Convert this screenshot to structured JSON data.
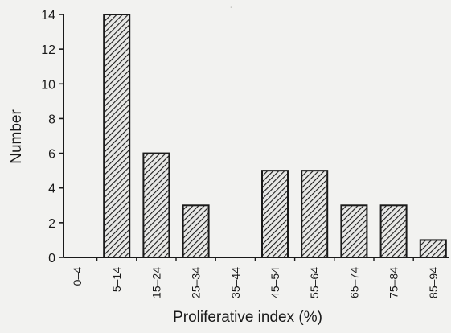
{
  "chart_data": {
    "type": "bar",
    "title": "",
    "xlabel": "Proliferative index (%)",
    "ylabel": "Number",
    "categories": [
      "0–4",
      "5–14",
      "15–24",
      "25–34",
      "35–44",
      "45–54",
      "55–64",
      "65–74",
      "75–84",
      "85–94"
    ],
    "values": [
      0,
      14,
      6,
      3,
      0,
      5,
      5,
      3,
      3,
      1
    ],
    "ylim": [
      0,
      14
    ],
    "yticks": [
      0,
      2,
      4,
      6,
      8,
      10,
      12,
      14
    ],
    "grid": false,
    "legend": "none",
    "bar_fill": "diagonal-hatch",
    "colors": {
      "ink": "#1a1a1a",
      "hatch_bg": "#e8e8e6",
      "paper": "#f2f2f0"
    }
  }
}
